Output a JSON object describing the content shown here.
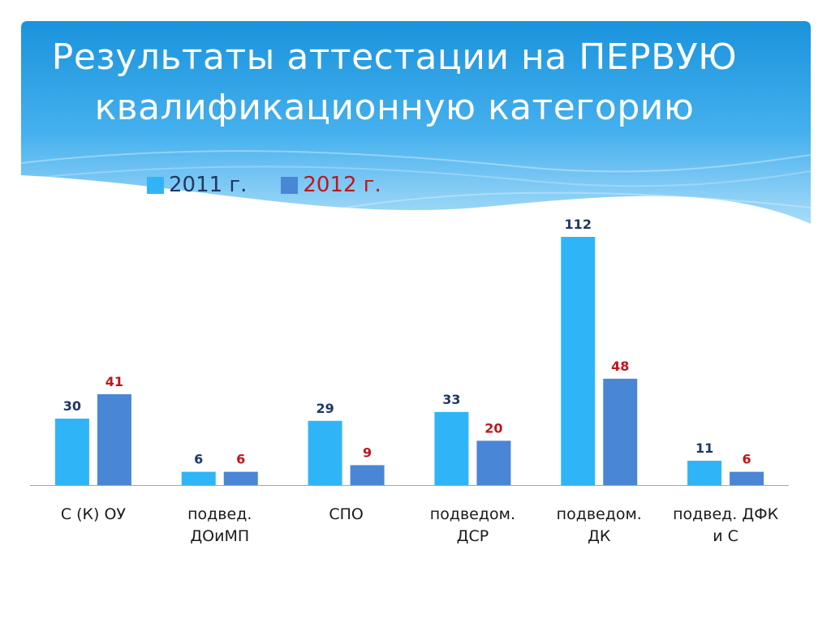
{
  "title": {
    "line1": "Результаты аттестации на ПЕРВУЮ",
    "line2": "квалификационную категорию"
  },
  "colors": {
    "header_top": "#1a93dc",
    "header_bottom": "#9fd6f6",
    "series_2011": "#2fb5f7",
    "series_2012": "#4a86d6",
    "label_2011": "#1f3864",
    "label_2012": "#c0161c",
    "axis": "#a6a6a6"
  },
  "chart_data": {
    "type": "bar",
    "title": "Результаты аттестации на ПЕРВУЮ квалификационную категорию",
    "categories": [
      [
        "С (К) ОУ"
      ],
      [
        "подвед.",
        "ДОиМП"
      ],
      [
        "СПО"
      ],
      [
        "подведом.",
        "ДСР"
      ],
      [
        "подведом.",
        "ДК"
      ],
      [
        "подвед. ДФК",
        "и С"
      ]
    ],
    "series": [
      {
        "name": "2011 г.",
        "values": [
          30,
          6,
          29,
          33,
          112,
          11
        ]
      },
      {
        "name": "2012 г.",
        "values": [
          41,
          6,
          9,
          20,
          48,
          6
        ]
      }
    ],
    "ylim": [
      0,
      112
    ],
    "grid": false,
    "legend": "top-left"
  }
}
